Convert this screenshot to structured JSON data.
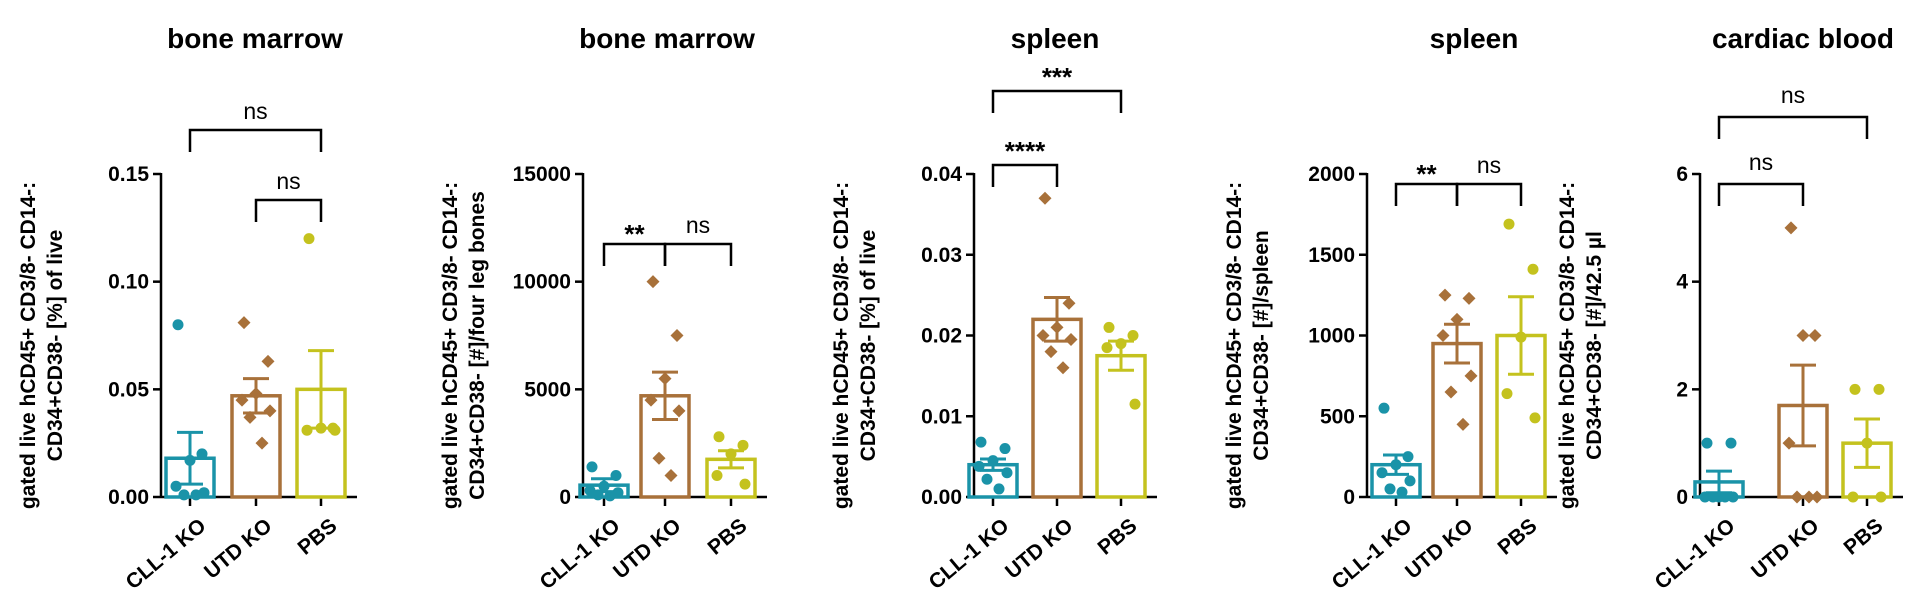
{
  "colors": {
    "CLL-1 KO": "#1a93a8",
    "UTD KO": "#a8713a",
    "PBS": "#c4c21e"
  },
  "chart_data": [
    {
      "type": "bar",
      "title": "bone marrow",
      "ylabel": [
        "gated live hCD45+ CD3/8- CD14-:",
        "CD34+CD38- [%] of live"
      ],
      "categories": [
        "CLL-1 KO",
        "UTD KO",
        "PBS"
      ],
      "ylim": [
        0,
        0.15
      ],
      "yticks": [
        0,
        0.05,
        0.1,
        0.15
      ],
      "ytick_labels": [
        "0.00",
        "0.05",
        "0.10",
        "0.15"
      ],
      "means": [
        0.018,
        0.047,
        0.05
      ],
      "sem": [
        0.012,
        0.008,
        0.018
      ],
      "points": [
        [
          0.08,
          0.02,
          0.017,
          0.005,
          0.002,
          0.001,
          0.001
        ],
        [
          0.081,
          0.063,
          0.048,
          0.045,
          0.04,
          0.037,
          0.025
        ],
        [
          0.12,
          0.032,
          0.032,
          0.031,
          0.031
        ]
      ],
      "comparisons": [
        {
          "from": 0,
          "to": 2,
          "label": "ns"
        },
        {
          "from": 1,
          "to": 2,
          "label": "ns"
        }
      ]
    },
    {
      "type": "bar",
      "title": "bone marrow",
      "ylabel": [
        "gated live hCD45+ CD3/8- CD14-:",
        "CD34+CD38- [#]/four leg bones"
      ],
      "categories": [
        "CLL-1 KO",
        "UTD KO",
        "PBS"
      ],
      "ylim": [
        0,
        15000
      ],
      "yticks": [
        0,
        5000,
        10000,
        15000
      ],
      "ytick_labels": [
        "0",
        "5000",
        "10000",
        "15000"
      ],
      "means": [
        550,
        4700,
        1750
      ],
      "sem": [
        300,
        1100,
        400
      ],
      "points": [
        [
          1400,
          1000,
          500,
          300,
          200,
          100,
          50
        ],
        [
          10000,
          7500,
          5500,
          4500,
          4000,
          1800,
          1000
        ],
        [
          2800,
          2400,
          2000,
          1000,
          600
        ]
      ],
      "comparisons": [
        {
          "from": 0,
          "to": 1,
          "label": "**"
        },
        {
          "from": 1,
          "to": 2,
          "label": "ns"
        }
      ]
    },
    {
      "type": "bar",
      "title": "spleen",
      "ylabel": [
        "gated live hCD45+ CD3/8- CD14-:",
        "CD34+CD38- [%] of live"
      ],
      "categories": [
        "CLL-1 KO",
        "UTD KO",
        "PBS"
      ],
      "ylim": [
        0,
        0.04
      ],
      "yticks": [
        0,
        0.01,
        0.02,
        0.03,
        0.04
      ],
      "ytick_labels": [
        "0.00",
        "0.01",
        "0.02",
        "0.03",
        "0.04"
      ],
      "means": [
        0.004,
        0.022,
        0.0175
      ],
      "sem": [
        0.0007,
        0.0027,
        0.0018
      ],
      "points": [
        [
          0.0068,
          0.006,
          0.0045,
          0.0038,
          0.003,
          0.0022,
          0.001
        ],
        [
          0.037,
          0.024,
          0.021,
          0.02,
          0.0195,
          0.018,
          0.016
        ],
        [
          0.021,
          0.02,
          0.019,
          0.0185,
          0.0115
        ]
      ],
      "comparisons": [
        {
          "from": 0,
          "to": 1,
          "label": "****"
        },
        {
          "from": 0,
          "to": 2,
          "label": "***"
        }
      ]
    },
    {
      "type": "bar",
      "title": "spleen",
      "ylabel": [
        "gated live hCD45+ CD3/8- CD14-:",
        "CD34+CD38- [#]/spleen"
      ],
      "categories": [
        "CLL-1 KO",
        "UTD KO",
        "PBS"
      ],
      "ylim": [
        0,
        2000
      ],
      "yticks": [
        0,
        500,
        1000,
        1500,
        2000
      ],
      "ytick_labels": [
        "0",
        "500",
        "1000",
        "1500",
        "2000"
      ],
      "means": [
        200,
        950,
        1000
      ],
      "sem": [
        60,
        120,
        240
      ],
      "points": [
        [
          550,
          250,
          200,
          150,
          100,
          50,
          30
        ],
        [
          1250,
          1230,
          1100,
          1000,
          750,
          650,
          450
        ],
        [
          1690,
          1410,
          990,
          640,
          490
        ]
      ],
      "comparisons": [
        {
          "from": 0,
          "to": 1,
          "label": "**"
        },
        {
          "from": 1,
          "to": 2,
          "label": "ns"
        }
      ]
    },
    {
      "type": "bar",
      "title": "cardiac blood",
      "ylabel": [
        "gated live hCD45+ CD3/8- CD14-:",
        "CD34+CD38- [#]/42.5 µl"
      ],
      "categories": [
        "CLL-1 KO",
        "UTD KO",
        "PBS"
      ],
      "ylim": [
        0,
        6
      ],
      "yticks": [
        0,
        2,
        4,
        6
      ],
      "ytick_labels": [
        "0",
        "2",
        "4",
        "6"
      ],
      "means": [
        0.28,
        1.7,
        1.0
      ],
      "sem": [
        0.2,
        0.75,
        0.45
      ],
      "points": [
        [
          1.0,
          1.0,
          0.0,
          0.0,
          0.0,
          0.0,
          0.0
        ],
        [
          5.0,
          3.0,
          3.0,
          1.0,
          0.0,
          0.0,
          0.0
        ],
        [
          2.0,
          2.0,
          1.0,
          0.0,
          0.0
        ]
      ],
      "comparisons": [
        {
          "from": 0,
          "to": 1,
          "label": "ns"
        },
        {
          "from": 0,
          "to": 2,
          "label": "ns"
        }
      ]
    }
  ]
}
